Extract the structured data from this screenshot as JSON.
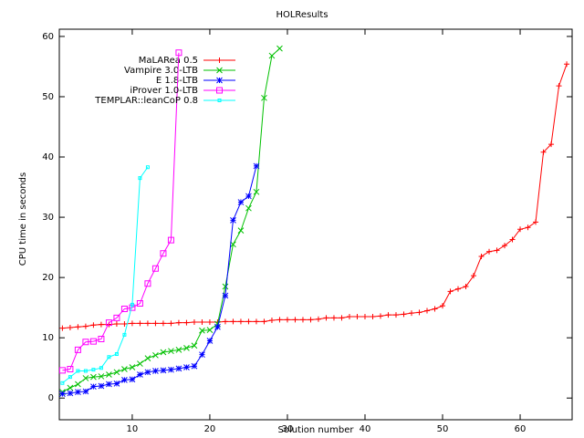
{
  "chart_data": {
    "type": "line",
    "title": "HOLResults",
    "x_label": "Solution number",
    "y_label": "CPU time in seconds",
    "xlim": [
      0.6,
      66.7
    ],
    "ylim": [
      -3.6,
      61.2
    ],
    "xticks": [
      10,
      20,
      30,
      40,
      50,
      60
    ],
    "yticks": [
      0,
      10,
      20,
      30,
      40,
      50,
      60
    ],
    "legend": "top-left",
    "series": [
      {
        "name": "MaLARea 0.5",
        "color": "#ff0000",
        "marker": "plus",
        "x": [
          1,
          2,
          3,
          4,
          5,
          6,
          7,
          8,
          9,
          10,
          11,
          12,
          13,
          14,
          15,
          16,
          17,
          18,
          19,
          20,
          21,
          22,
          23,
          24,
          25,
          26,
          27,
          28,
          29,
          30,
          31,
          32,
          33,
          34,
          35,
          36,
          37,
          38,
          39,
          40,
          41,
          42,
          43,
          44,
          45,
          46,
          47,
          48,
          49,
          50,
          51,
          52,
          53,
          54,
          55,
          56,
          57,
          58,
          59,
          60,
          61,
          62,
          63,
          64,
          65,
          66
        ],
        "values": [
          11.6,
          11.7,
          11.8,
          11.9,
          12.1,
          12.2,
          12.2,
          12.3,
          12.3,
          12.4,
          12.4,
          12.4,
          12.4,
          12.4,
          12.4,
          12.5,
          12.5,
          12.6,
          12.6,
          12.6,
          12.6,
          12.7,
          12.7,
          12.7,
          12.7,
          12.7,
          12.7,
          12.9,
          13.0,
          13.0,
          13.0,
          13.0,
          13.0,
          13.1,
          13.3,
          13.3,
          13.3,
          13.5,
          13.5,
          13.5,
          13.5,
          13.6,
          13.8,
          13.8,
          13.9,
          14.1,
          14.2,
          14.5,
          14.8,
          15.3,
          17.7,
          18.1,
          18.5,
          20.3,
          23.5,
          24.3,
          24.5,
          25.3,
          26.3,
          28.0,
          28.3,
          29.2,
          40.8,
          42.1,
          51.8,
          55.4
        ]
      },
      {
        "name": "Vampire 3.0-LTB",
        "color": "#00c000",
        "marker": "cross",
        "x": [
          1,
          2,
          3,
          4,
          5,
          6,
          7,
          8,
          9,
          10,
          11,
          12,
          13,
          14,
          15,
          16,
          17,
          18,
          19,
          20,
          21,
          22,
          23,
          24,
          25,
          26,
          27,
          28,
          29
        ],
        "values": [
          1.0,
          1.7,
          2.3,
          3.3,
          3.5,
          3.6,
          3.9,
          4.3,
          4.8,
          5.1,
          5.7,
          6.6,
          7.1,
          7.6,
          7.8,
          8.0,
          8.3,
          8.7,
          11.2,
          11.3,
          12.3,
          18.5,
          25.5,
          27.8,
          31.5,
          34.2,
          49.8,
          56.8,
          58.0
        ]
      },
      {
        "name": "E 1.8-LTB",
        "color": "#0000ff",
        "marker": "star",
        "x": [
          1,
          2,
          3,
          4,
          5,
          6,
          7,
          8,
          9,
          10,
          11,
          12,
          13,
          14,
          15,
          16,
          17,
          18,
          19,
          20,
          21,
          22,
          23,
          24,
          25,
          26
        ],
        "values": [
          0.7,
          0.8,
          1.0,
          1.1,
          1.9,
          2.0,
          2.3,
          2.4,
          3.0,
          3.1,
          3.9,
          4.3,
          4.5,
          4.6,
          4.7,
          4.9,
          5.1,
          5.3,
          7.2,
          9.5,
          11.8,
          17.0,
          29.5,
          32.5,
          33.5,
          38.5
        ]
      },
      {
        "name": "iProver 1.0-LTB",
        "color": "#ff00ff",
        "marker": "box",
        "x": [
          1,
          2,
          3,
          4,
          5,
          6,
          7,
          8,
          9,
          10,
          11,
          12,
          13,
          14,
          15,
          16
        ],
        "values": [
          4.6,
          4.8,
          8.0,
          9.3,
          9.4,
          9.8,
          12.5,
          13.3,
          14.8,
          15.0,
          15.7,
          19.0,
          21.5,
          24.0,
          26.2,
          57.3
        ]
      },
      {
        "name": "TEMPLAR::leanCoP 0.8",
        "color": "#00ffff",
        "marker": "dot",
        "x": [
          1,
          2,
          3,
          4,
          5,
          6,
          7,
          8,
          9,
          10,
          11,
          12
        ],
        "values": [
          2.5,
          3.5,
          4.5,
          4.5,
          4.7,
          5.0,
          6.8,
          7.3,
          10.5,
          15.5,
          36.5,
          38.3
        ]
      }
    ]
  }
}
